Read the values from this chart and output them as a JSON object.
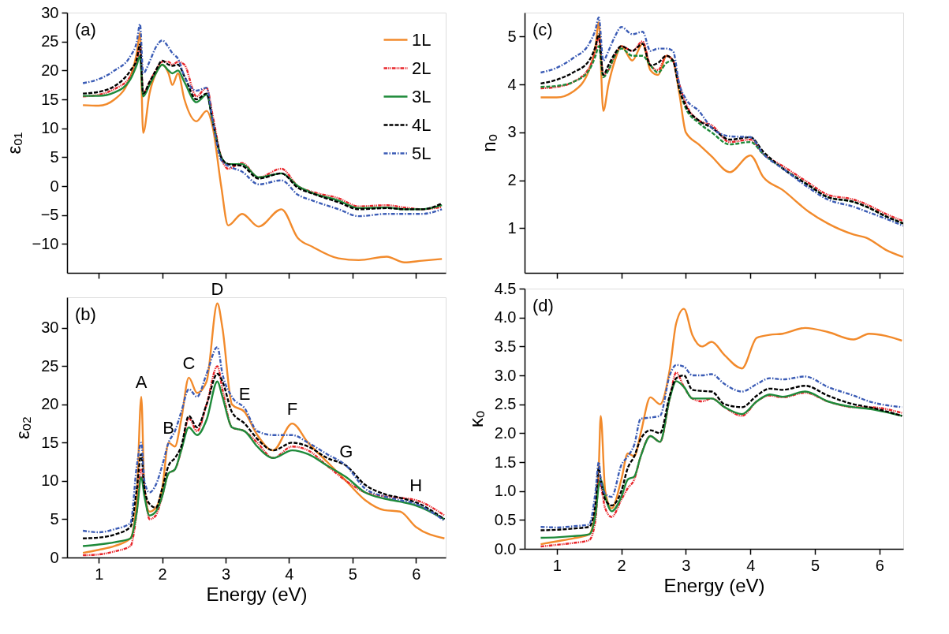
{
  "chart_data": [
    {
      "type": "line",
      "ylabel": "εₒ₁",
      "annotations": [
        "(a)"
      ],
      "xlim": [
        0.5,
        6.47
      ],
      "ylim": [
        -15,
        30
      ],
      "xticks": [
        1,
        2,
        3,
        4,
        5,
        6
      ],
      "yticks": [
        -10,
        -5,
        0,
        5,
        10,
        15,
        20,
        25,
        30
      ],
      "tick_labels": "y",
      "grid": false,
      "legend": "top right",
      "x": [
        0.75,
        1.0,
        1.25,
        1.5,
        1.6,
        1.65,
        1.7,
        1.8,
        1.9,
        2.0,
        2.1,
        2.16,
        2.25,
        2.35,
        2.54,
        2.7,
        2.8,
        2.93,
        3.04,
        3.26,
        3.52,
        3.88,
        4.14,
        4.37,
        4.78,
        5.1,
        5.54,
        5.82,
        6.1,
        6.41
      ],
      "series": [
        {
          "name": "1L",
          "color": "#f28a2b",
          "line_style": "solid",
          "values": [
            14,
            13.9,
            15,
            19,
            23,
            26.5,
            9.2,
            16,
            19.5,
            21,
            19.5,
            17.5,
            19.5,
            15,
            11.2,
            13,
            10,
            0,
            -6.8,
            -4.8,
            -7,
            -4,
            -9,
            -10.5,
            -12.5,
            -12.8,
            -12.2,
            -13.2,
            -12.9,
            -12.6
          ]
        },
        {
          "name": "2L",
          "color": "#e8262b",
          "line_style": "dashdotdot",
          "values": [
            15.5,
            15.8,
            16.8,
            19,
            21.5,
            24,
            16,
            18,
            20,
            21.5,
            21.5,
            21,
            21.5,
            21,
            15.5,
            17,
            12,
            5,
            3,
            4,
            1.5,
            3,
            0,
            -1,
            -2.1,
            -3.5,
            -3.3,
            -3.7,
            -4,
            -3.6
          ]
        },
        {
          "name": "3L",
          "color": "#1e8a3a",
          "line_style": "solid",
          "values": [
            15.6,
            15.6,
            16.2,
            18.5,
            21,
            22.5,
            15.5,
            17.5,
            19.5,
            21,
            20,
            19.5,
            20,
            18,
            14.5,
            15.8,
            11,
            5,
            3.8,
            3.8,
            1.5,
            2.2,
            0,
            -1.2,
            -2.5,
            -3.8,
            -3.7,
            -4,
            -4,
            -3.3
          ]
        },
        {
          "name": "4L",
          "color": "#000000",
          "line_style": "dashed",
          "values": [
            16,
            16.3,
            17.3,
            20,
            22,
            24.5,
            16,
            18,
            20,
            21.7,
            21,
            20.8,
            21,
            19,
            15,
            16,
            11,
            5,
            3.8,
            3.5,
            1.3,
            2.2,
            -0.3,
            -1.3,
            -2.8,
            -4,
            -3.8,
            -4,
            -4,
            -3
          ]
        },
        {
          "name": "5L",
          "color": "#3a5bb5",
          "line_style": "dashdot",
          "values": [
            17.8,
            18.5,
            20,
            22.5,
            25,
            28,
            19.5,
            21.5,
            24,
            25.2,
            24,
            23,
            22,
            19,
            16.5,
            17,
            11,
            4.5,
            3.5,
            2.5,
            0.3,
            1,
            -1.5,
            -2.5,
            -4,
            -5.2,
            -4.8,
            -4.8,
            -4.8,
            -4
          ]
        }
      ]
    },
    {
      "type": "line",
      "ylabel": "nₒ",
      "annotations": [
        "(c)"
      ],
      "xlim": [
        0.5,
        6.37
      ],
      "ylim": [
        0.07,
        5.5
      ],
      "xticks": [
        1,
        2,
        3,
        4,
        5,
        6
      ],
      "yticks": [
        1,
        2,
        3,
        4,
        5
      ],
      "tick_labels": "y",
      "grid": false,
      "x": [
        0.75,
        1.0,
        1.25,
        1.5,
        1.6,
        1.65,
        1.72,
        1.8,
        1.9,
        2.0,
        2.17,
        2.33,
        2.45,
        2.57,
        2.7,
        2.8,
        2.9,
        3.0,
        3.2,
        3.4,
        3.68,
        4.0,
        4.2,
        4.5,
        4.9,
        5.2,
        5.6,
        5.8,
        6.1,
        6.37
      ],
      "series": [
        {
          "color": "#f28a2b",
          "line_style": "solid",
          "values": [
            3.73,
            3.73,
            3.85,
            4.3,
            4.8,
            5.3,
            3.45,
            4.0,
            4.5,
            4.8,
            4.5,
            4.85,
            4.3,
            4.2,
            4.6,
            4.5,
            3.8,
            3.0,
            2.75,
            2.5,
            2.17,
            2.52,
            2.07,
            1.8,
            1.35,
            1.1,
            0.87,
            0.8,
            0.55,
            0.4
          ]
        },
        {
          "color": "#e8262b",
          "line_style": "dashdotdot",
          "values": [
            3.92,
            3.95,
            4.05,
            4.35,
            4.7,
            5.0,
            4.2,
            4.3,
            4.6,
            4.8,
            4.7,
            4.9,
            4.4,
            4.3,
            4.6,
            4.5,
            4.0,
            3.6,
            3.25,
            3.15,
            2.8,
            2.85,
            2.55,
            2.3,
            1.95,
            1.7,
            1.6,
            1.5,
            1.3,
            1.15
          ]
        },
        {
          "color": "#1e8a3a",
          "line_style": "dashed",
          "values": [
            3.95,
            3.97,
            4.05,
            4.3,
            4.6,
            4.8,
            4.15,
            4.3,
            4.6,
            4.75,
            4.6,
            4.6,
            4.4,
            4.25,
            4.45,
            4.5,
            3.9,
            3.5,
            3.2,
            3.0,
            2.75,
            2.8,
            2.55,
            2.25,
            1.9,
            1.65,
            1.55,
            1.45,
            1.25,
            1.1
          ]
        },
        {
          "color": "#000000",
          "line_style": "dashed",
          "values": [
            4.02,
            4.1,
            4.25,
            4.5,
            4.8,
            5.05,
            4.2,
            4.4,
            4.65,
            4.8,
            4.7,
            4.85,
            4.4,
            4.45,
            4.6,
            4.5,
            3.9,
            3.55,
            3.25,
            3.1,
            2.85,
            2.9,
            2.6,
            2.25,
            1.9,
            1.65,
            1.55,
            1.45,
            1.25,
            1.1
          ]
        },
        {
          "color": "#3a5bb5",
          "line_style": "dashdot",
          "values": [
            4.25,
            4.35,
            4.55,
            4.85,
            5.15,
            5.4,
            4.5,
            4.7,
            5.0,
            5.2,
            5.05,
            5.1,
            4.7,
            4.75,
            4.75,
            4.7,
            4.0,
            3.7,
            3.45,
            3.1,
            2.92,
            2.9,
            2.55,
            2.25,
            1.85,
            1.6,
            1.45,
            1.35,
            1.2,
            1.05
          ]
        }
      ]
    },
    {
      "type": "line",
      "xlabel": "Energy (eV)",
      "ylabel": "εₒ₂",
      "annotations": [
        "(b)",
        {
          "text": "A",
          "x": 1.67,
          "y": 21
        },
        {
          "text": "B",
          "x": 2.1,
          "y": 15
        },
        {
          "text": "C",
          "x": 2.42,
          "y": 23.5
        },
        {
          "text": "D",
          "x": 2.87,
          "y": 33.2
        },
        {
          "text": "E",
          "x": 3.3,
          "y": 19.5
        },
        {
          "text": "F",
          "x": 4.05,
          "y": 17.5
        },
        {
          "text": "G",
          "x": 4.9,
          "y": 12
        },
        {
          "text": "H",
          "x": 6.0,
          "y": 7.5
        }
      ],
      "xlim": [
        0.5,
        6.47
      ],
      "ylim": [
        0,
        34
      ],
      "xticks": [
        1,
        2,
        3,
        4,
        5,
        6
      ],
      "yticks": [
        0,
        5,
        10,
        15,
        20,
        25,
        30
      ],
      "grid": false,
      "x": [
        0.75,
        1.0,
        1.25,
        1.5,
        1.6,
        1.67,
        1.72,
        1.8,
        1.9,
        2.0,
        2.1,
        2.2,
        2.3,
        2.42,
        2.55,
        2.7,
        2.87,
        2.95,
        3.1,
        3.3,
        3.5,
        3.75,
        4.05,
        4.3,
        4.6,
        4.9,
        5.2,
        5.5,
        5.75,
        6.0,
        6.45
      ],
      "series": [
        {
          "color": "#f28a2b",
          "line_style": "solid",
          "values": [
            0.6,
            1.0,
            1.5,
            2.5,
            8,
            21,
            9,
            6,
            6.5,
            9,
            15,
            14.5,
            18,
            23.5,
            21.5,
            23,
            33.2,
            30,
            20,
            19,
            16,
            14,
            17.5,
            15,
            12.5,
            10,
            7.5,
            6.2,
            6,
            4,
            2.5
          ]
        },
        {
          "color": "#e8262b",
          "line_style": "dashdotdot",
          "values": [
            0.3,
            0.4,
            0.8,
            1.5,
            6,
            11.5,
            9,
            5,
            5.5,
            8,
            11,
            11.5,
            14,
            18.2,
            16.5,
            20,
            25,
            22,
            17,
            16.5,
            15,
            13,
            14.5,
            14,
            12,
            10,
            8.5,
            8,
            7.8,
            7.5,
            5.5
          ]
        },
        {
          "color": "#1e8a3a",
          "line_style": "solid",
          "values": [
            1.5,
            1.7,
            2,
            2.5,
            6,
            10.5,
            8,
            5.5,
            6,
            8,
            11,
            11.5,
            14,
            17,
            16,
            18,
            23,
            21,
            17,
            16.5,
            14.5,
            13,
            14,
            13.5,
            12,
            10.5,
            8.5,
            7.7,
            7.3,
            6.8,
            5
          ]
        },
        {
          "color": "#000000",
          "line_style": "dashed",
          "values": [
            2.5,
            2.6,
            3,
            4,
            9,
            13.5,
            9,
            7,
            6.5,
            9,
            12,
            13,
            14.5,
            18.5,
            17,
            20,
            24,
            23,
            19,
            17.5,
            15.5,
            14,
            15,
            14.5,
            13,
            12,
            9.5,
            8.3,
            7.8,
            7.2,
            5
          ]
        },
        {
          "color": "#3a5bb5",
          "line_style": "dashdot",
          "values": [
            3.5,
            3.3,
            3.7,
            4.5,
            12,
            15,
            10,
            8.5,
            9.5,
            12,
            15,
            16.5,
            19,
            22,
            21,
            24,
            27.5,
            24,
            21,
            19.5,
            16.5,
            16,
            16,
            15,
            13.5,
            12,
            9,
            8,
            7.5,
            7,
            4.8
          ]
        }
      ]
    },
    {
      "type": "line",
      "xlabel": "Energy (eV)",
      "ylabel": "κₒ",
      "annotations": [
        "(d)"
      ],
      "xlim": [
        0.5,
        6.37
      ],
      "ylim": [
        0,
        4.5
      ],
      "xticks": [
        1,
        2,
        3,
        4,
        5,
        6
      ],
      "yticks": [
        {
          "value": 0,
          "label": "0.0"
        },
        0.5,
        {
          "value": 1,
          "label": "1.0"
        },
        1.5,
        {
          "value": 2,
          "label": "2.0"
        },
        2.5,
        {
          "value": 3,
          "label": "3.0"
        },
        3.5,
        {
          "value": 4,
          "label": "4.0"
        },
        4.5
      ],
      "grid": false,
      "x": [
        0.75,
        1.0,
        1.25,
        1.5,
        1.6,
        1.65,
        1.68,
        1.75,
        1.85,
        2.0,
        2.1,
        2.2,
        2.3,
        2.45,
        2.6,
        2.75,
        2.85,
        2.97,
        3.1,
        3.25,
        3.4,
        3.6,
        3.87,
        4.1,
        4.3,
        4.5,
        4.85,
        5.2,
        5.6,
        5.84,
        6.35
      ],
      "series": [
        {
          "color": "#f28a2b",
          "line_style": "solid",
          "values": [
            0.08,
            0.13,
            0.18,
            0.25,
            0.7,
            1.4,
            2.3,
            1.0,
            0.7,
            1.2,
            1.65,
            1.6,
            2.0,
            2.62,
            2.5,
            3.1,
            3.9,
            4.15,
            3.7,
            3.5,
            3.58,
            3.35,
            3.12,
            3.65,
            3.7,
            3.72,
            3.82,
            3.75,
            3.62,
            3.72,
            3.6
          ]
        },
        {
          "color": "#e8262b",
          "line_style": "dashdotdot",
          "values": [
            0.04,
            0.07,
            0.1,
            0.15,
            0.5,
            1.2,
            1.1,
            0.7,
            0.55,
            0.85,
            1.05,
            1.2,
            1.6,
            1.95,
            1.85,
            2.6,
            3.05,
            2.8,
            2.6,
            2.55,
            2.6,
            2.45,
            2.3,
            2.55,
            2.65,
            2.62,
            2.7,
            2.55,
            2.45,
            2.45,
            2.35
          ]
        },
        {
          "color": "#1e8a3a",
          "line_style": "solid",
          "values": [
            0.19,
            0.2,
            0.22,
            0.25,
            0.6,
            1.1,
            1.2,
            0.9,
            0.65,
            0.9,
            1.2,
            1.25,
            1.6,
            1.95,
            1.85,
            2.6,
            2.9,
            2.8,
            2.6,
            2.6,
            2.6,
            2.45,
            2.33,
            2.55,
            2.67,
            2.63,
            2.72,
            2.55,
            2.45,
            2.42,
            2.3
          ]
        },
        {
          "color": "#000000",
          "line_style": "dashed",
          "values": [
            0.32,
            0.33,
            0.35,
            0.38,
            0.8,
            1.4,
            1.2,
            0.85,
            0.75,
            1.0,
            1.4,
            1.6,
            1.9,
            2.05,
            2.0,
            2.65,
            2.95,
            3.0,
            2.75,
            2.73,
            2.72,
            2.5,
            2.45,
            2.65,
            2.77,
            2.75,
            2.82,
            2.65,
            2.5,
            2.45,
            2.3
          ]
        },
        {
          "color": "#3a5bb5",
          "line_style": "dashdot",
          "values": [
            0.38,
            0.37,
            0.39,
            0.42,
            1.0,
            1.5,
            1.2,
            0.95,
            0.9,
            1.45,
            1.6,
            1.8,
            2.25,
            2.27,
            2.3,
            3.0,
            3.18,
            3.15,
            3.0,
            3.0,
            3.02,
            2.85,
            2.72,
            2.85,
            2.95,
            2.93,
            2.98,
            2.8,
            2.65,
            2.55,
            2.45
          ]
        }
      ]
    }
  ]
}
